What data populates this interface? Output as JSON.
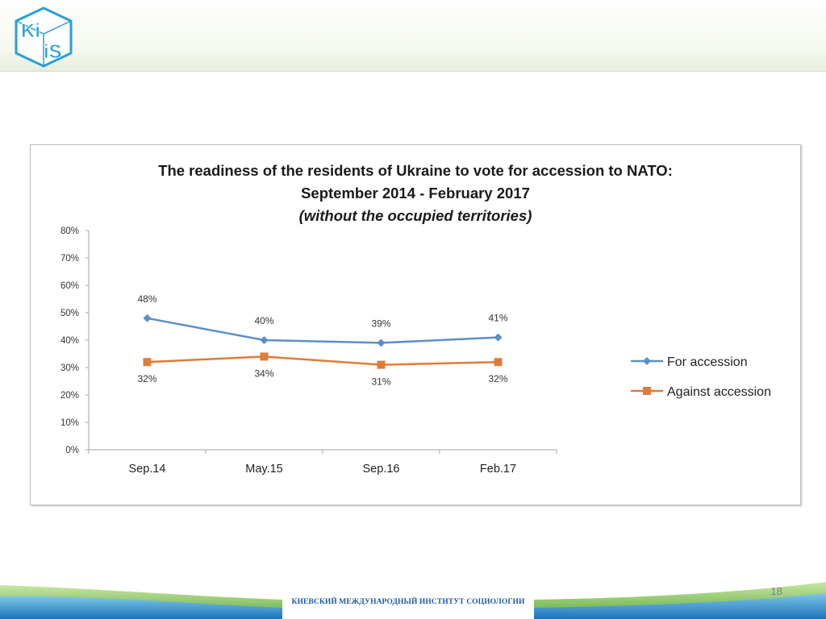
{
  "logo": {
    "text_top": "Ki",
    "text_bottom": "iS",
    "color": "#2a9fd8"
  },
  "footer": {
    "institute": "КИЕВСКИЙ МЕЖДУНАРОДНЫЙ ИНСТИТУТ СОЦИОЛОГИИ",
    "page_number": "18"
  },
  "colors": {
    "for_accession": "#5b8fc7",
    "against_accession": "#e07b39",
    "axis": "#a6a6a6"
  },
  "chart_data": {
    "type": "line",
    "title_lines": [
      "The readiness of the residents of Ukraine to vote for accession to NATO:",
      "September 2014 - February 2017",
      "(without the occupied territories)"
    ],
    "categories": [
      "Sep.14",
      "May.15",
      "Sep.16",
      "Feb.17"
    ],
    "y_ticks": [
      "0%",
      "10%",
      "20%",
      "30%",
      "40%",
      "50%",
      "60%",
      "70%",
      "80%"
    ],
    "ylim": [
      0,
      80
    ],
    "grid": false,
    "legend_position": "right",
    "series": [
      {
        "name": "For accession",
        "values": [
          48,
          40,
          39,
          41
        ],
        "labels": [
          "48%",
          "40%",
          "39%",
          "41%"
        ],
        "marker": "diamond",
        "color": "#5b8fc7"
      },
      {
        "name": "Against accession",
        "values": [
          32,
          34,
          31,
          32
        ],
        "labels": [
          "32%",
          "34%",
          "31%",
          "32%"
        ],
        "marker": "square",
        "color": "#e07b39"
      }
    ]
  }
}
